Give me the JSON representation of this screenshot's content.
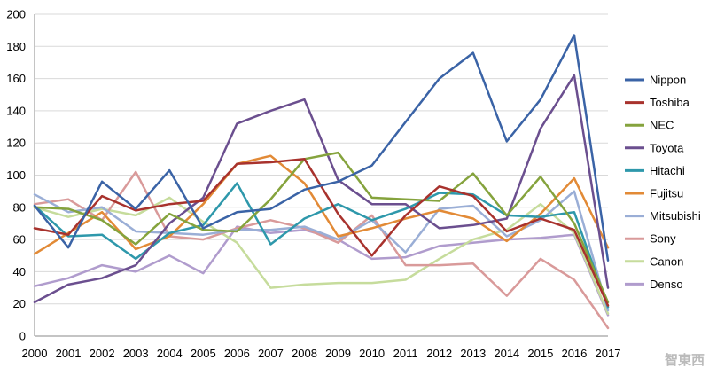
{
  "chart_data": {
    "type": "line",
    "title": "",
    "xlabel": "",
    "ylabel": "",
    "x": [
      "2000",
      "2001",
      "2002",
      "2003",
      "2004",
      "2005",
      "2006",
      "2007",
      "2008",
      "2009",
      "2010",
      "2011",
      "2012",
      "2013",
      "2014",
      "2015",
      "2016",
      "2017"
    ],
    "ylim": [
      0,
      200
    ],
    "yticks": [
      "0",
      "20",
      "40",
      "60",
      "80",
      "100",
      "120",
      "140",
      "160",
      "180",
      "200"
    ],
    "grid": "horizontal",
    "legend_position": "right",
    "series": [
      {
        "name": "Nippon",
        "color": "#3a63a6",
        "values": [
          81,
          55,
          96,
          79,
          103,
          67,
          77,
          79,
          91,
          96,
          106,
          133,
          160,
          176,
          121,
          147,
          187,
          47
        ]
      },
      {
        "name": "Toshiba",
        "color": "#a8322d",
        "values": [
          67,
          63,
          87,
          78,
          82,
          84,
          107,
          108,
          110,
          76,
          50,
          75,
          93,
          87,
          65,
          73,
          66,
          19
        ]
      },
      {
        "name": "NEC",
        "color": "#85a33d",
        "values": [
          80,
          79,
          72,
          57,
          76,
          66,
          65,
          85,
          110,
          114,
          86,
          85,
          84,
          101,
          75,
          99,
          70,
          21
        ]
      },
      {
        "name": "Toyota",
        "color": "#6b4f8f",
        "values": [
          21,
          32,
          36,
          44,
          70,
          86,
          132,
          140,
          147,
          97,
          82,
          82,
          67,
          69,
          73,
          129,
          162,
          30
        ]
      },
      {
        "name": "Hitachi",
        "color": "#2e98ab",
        "values": [
          81,
          62,
          63,
          48,
          64,
          69,
          95,
          57,
          73,
          82,
          72,
          79,
          89,
          88,
          75,
          74,
          77,
          18
        ]
      },
      {
        "name": "Fujitsu",
        "color": "#e28a36",
        "values": [
          51,
          64,
          77,
          54,
          62,
          82,
          107,
          112,
          95,
          62,
          67,
          73,
          78,
          73,
          59,
          76,
          98,
          55
        ]
      },
      {
        "name": "Mitsubishi",
        "color": "#9aaed6",
        "values": [
          88,
          77,
          80,
          65,
          64,
          63,
          66,
          66,
          68,
          60,
          72,
          52,
          79,
          81,
          62,
          72,
          90,
          16
        ]
      },
      {
        "name": "Sony",
        "color": "#d99a9a",
        "values": [
          82,
          85,
          72,
          102,
          62,
          60,
          67,
          72,
          67,
          58,
          75,
          44,
          44,
          45,
          25,
          48,
          35,
          5
        ]
      },
      {
        "name": "Canon",
        "color": "#c6dc9c",
        "values": [
          80,
          74,
          79,
          75,
          86,
          71,
          58,
          30,
          32,
          33,
          33,
          35,
          48,
          60,
          66,
          82,
          64,
          14
        ]
      },
      {
        "name": "Denso",
        "color": "#b09ccd",
        "values": [
          31,
          36,
          44,
          40,
          50,
          39,
          68,
          64,
          66,
          60,
          48,
          49,
          56,
          58,
          60,
          61,
          63,
          13
        ]
      }
    ]
  },
  "watermark": "智東西"
}
